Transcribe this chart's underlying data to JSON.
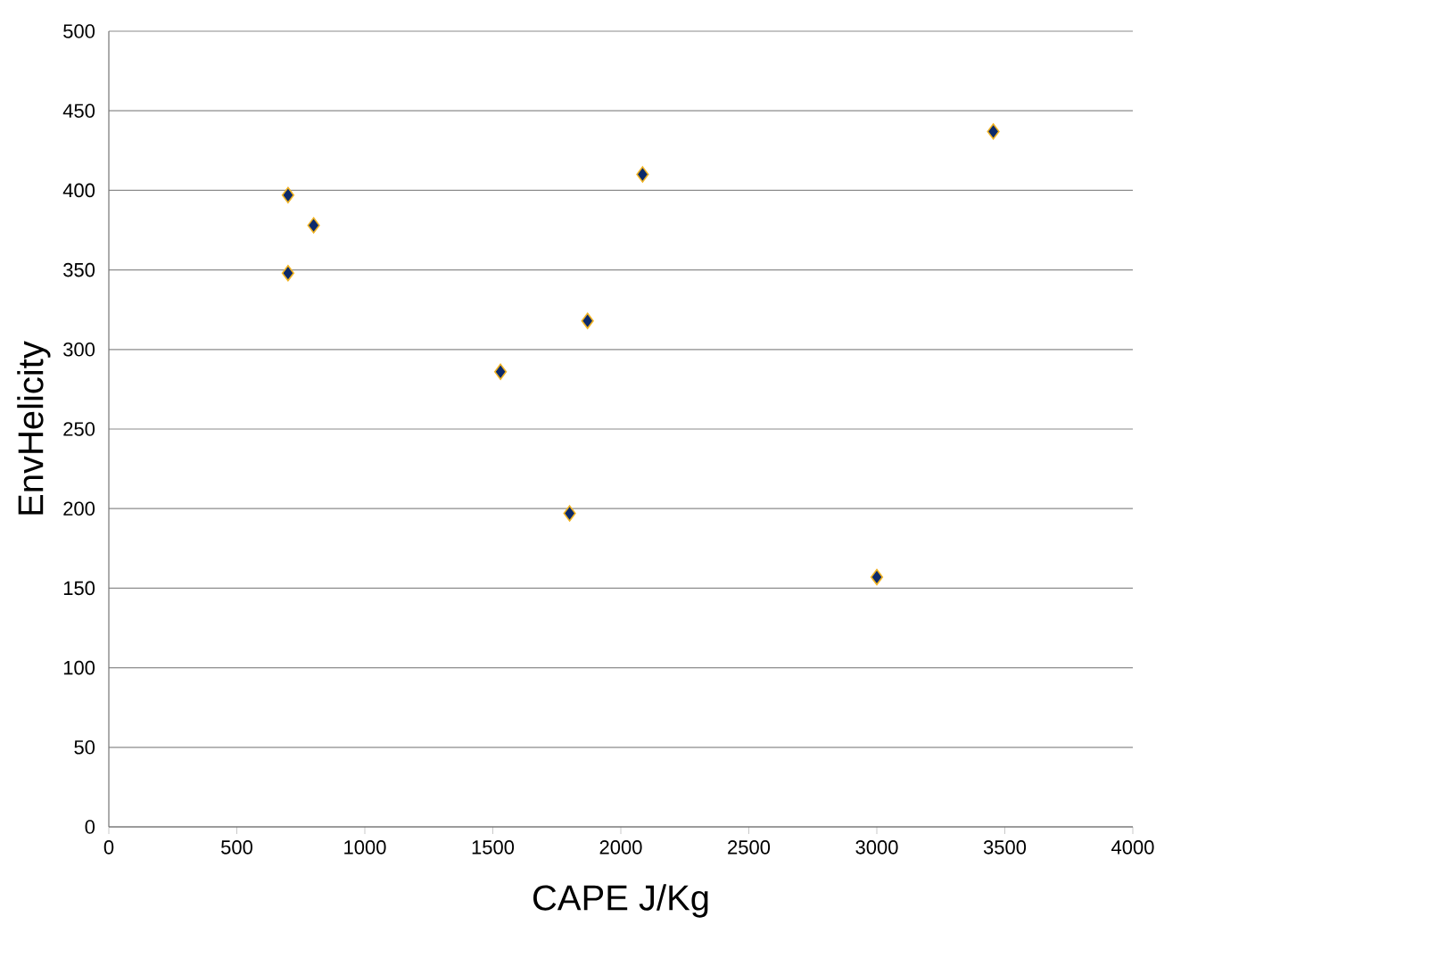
{
  "chart_data": {
    "type": "scatter",
    "xlabel": "CAPE J/Kg",
    "ylabel": "EnvHelicity",
    "x": [
      700,
      800,
      700,
      1530,
      1870,
      2085,
      1800,
      3000,
      3455
    ],
    "values": [
      397,
      378,
      348,
      286,
      318,
      410,
      197,
      157,
      437
    ],
    "color": "#0d2a6b",
    "marker": "diamond",
    "xlim": [
      0,
      4000
    ],
    "xticks": [
      0,
      500,
      1000,
      1500,
      2000,
      2500,
      3000,
      3500,
      4000
    ],
    "ylim": [
      0,
      500
    ],
    "yticks": [
      0,
      50,
      100,
      150,
      200,
      250,
      300,
      350,
      400,
      450,
      500
    ],
    "grid": "y"
  }
}
